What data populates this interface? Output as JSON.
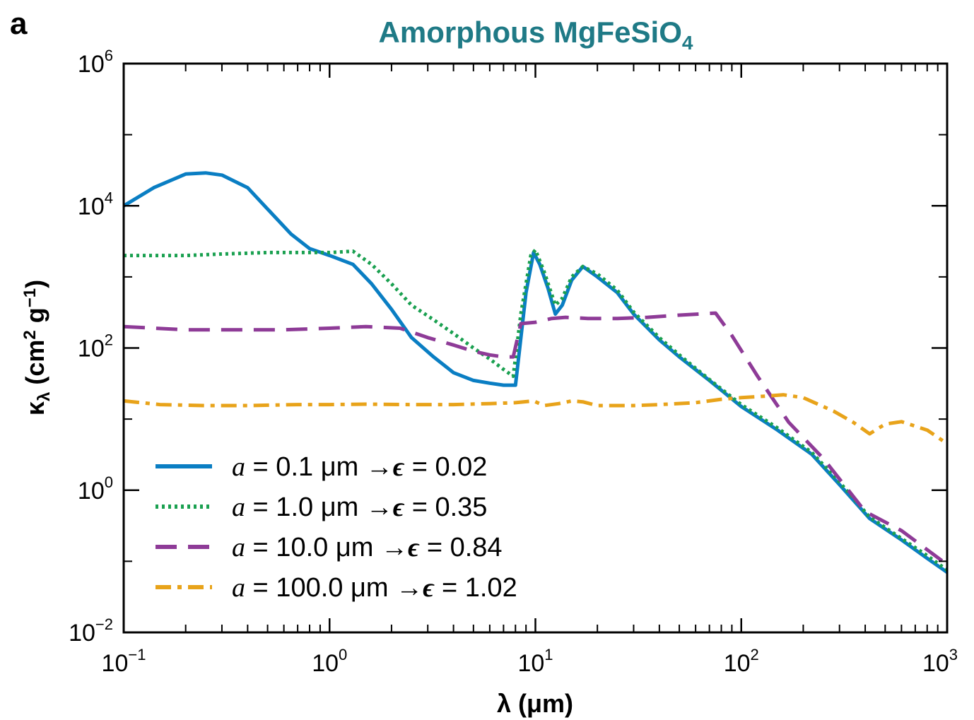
{
  "panel_label": "a",
  "chart_data": {
    "type": "line",
    "title": {
      "main": "Amorphous MgFeSiO",
      "sub": "4"
    },
    "xlabel": "λ (μm)",
    "ylabel": {
      "main": "κ",
      "sub": "λ",
      "unit_open": " (cm",
      "unit_exp1": "2",
      "unit_mid": " g",
      "unit_exp2": "−1",
      "unit_close": ")"
    },
    "x_scale": "log",
    "y_scale": "log",
    "xlim": [
      0.1,
      1000
    ],
    "ylim": [
      0.01,
      1000000
    ],
    "x_ticks": [
      {
        "value": 0.1,
        "base": "10",
        "exp": "−1"
      },
      {
        "value": 1,
        "base": "10",
        "exp": "0"
      },
      {
        "value": 10,
        "base": "10",
        "exp": "1"
      },
      {
        "value": 100,
        "base": "10",
        "exp": "2"
      },
      {
        "value": 1000,
        "base": "10",
        "exp": "3"
      }
    ],
    "y_ticks": [
      {
        "value": 0.01,
        "base": "10",
        "exp": "−2"
      },
      {
        "value": 1,
        "base": "10",
        "exp": "0"
      },
      {
        "value": 100,
        "base": "10",
        "exp": "2"
      },
      {
        "value": 10000,
        "base": "10",
        "exp": "4"
      },
      {
        "value": 1000000,
        "base": "10",
        "exp": "6"
      }
    ],
    "grid": false,
    "legend_position": "bottom-left",
    "series": [
      {
        "name": "a = 0.1 μm → ϵ = 0.02",
        "legend": {
          "a": "a",
          "size": " = 0.1 μm ",
          "arrow": "→",
          "eps": "ϵ",
          "value": " = 0.02"
        },
        "color": "#0a7ec3",
        "dash": "solid",
        "x": [
          0.1,
          0.14,
          0.2,
          0.25,
          0.3,
          0.4,
          0.5,
          0.65,
          0.8,
          1.0,
          1.3,
          1.6,
          2.0,
          2.5,
          3.2,
          4.0,
          5.0,
          6.0,
          7.0,
          8.0,
          9.0,
          9.8,
          10.5,
          11.5,
          12.5,
          13.5,
          15.0,
          17.0,
          20.0,
          25.0,
          30.0,
          40.0,
          50.0,
          70.0,
          100.0,
          150.0,
          220.0,
          300.0,
          420.0,
          600.0,
          800.0,
          1000.0
        ],
        "y": [
          10000,
          18000,
          28000,
          29000,
          27000,
          18000,
          9000,
          4000,
          2500,
          2000,
          1500,
          800,
          350,
          140,
          75,
          45,
          35,
          32,
          30,
          30,
          600,
          2200,
          1500,
          700,
          300,
          400,
          900,
          1400,
          1000,
          600,
          300,
          130,
          75,
          35,
          15,
          7,
          3.2,
          1.2,
          0.4,
          0.2,
          0.11,
          0.07
        ]
      },
      {
        "name": "a = 1.0 μm → ϵ = 0.35",
        "legend": {
          "a": "a",
          "size": " = 1.0 μm ",
          "arrow": "→",
          "eps": "ϵ",
          "value": " = 0.35"
        },
        "color": "#1aa050",
        "dash": "dotted",
        "x": [
          0.1,
          0.2,
          0.3,
          0.5,
          0.8,
          1.0,
          1.3,
          1.6,
          2.0,
          2.5,
          3.2,
          4.0,
          5.0,
          6.0,
          7.0,
          7.8,
          8.5,
          9.5,
          10.0,
          11.0,
          12.5,
          13.5,
          15.0,
          17.0,
          20.0,
          25.0,
          30.0,
          40.0,
          50.0,
          70.0,
          100.0,
          150.0,
          220.0,
          300.0,
          420.0,
          600.0,
          800.0,
          1000.0
        ],
        "y": [
          2000,
          2000,
          2100,
          2200,
          2200,
          2200,
          2300,
          1500,
          800,
          400,
          250,
          160,
          100,
          70,
          50,
          40,
          300,
          2000,
          2400,
          1200,
          400,
          500,
          1000,
          1400,
          1100,
          650,
          320,
          140,
          80,
          36,
          16,
          7.5,
          3.4,
          1.3,
          0.42,
          0.21,
          0.12,
          0.075
        ]
      },
      {
        "name": "a = 10.0 μm → ϵ = 0.84",
        "legend": {
          "a": "a",
          "size": " = 10.0 μm ",
          "arrow": "→",
          "eps": "ϵ",
          "value": " = 0.84"
        },
        "color": "#8e3b97",
        "dash": "dashed",
        "x": [
          0.1,
          0.2,
          0.35,
          0.6,
          1.0,
          1.5,
          2.2,
          3.0,
          4.0,
          5.0,
          6.0,
          7.0,
          7.8,
          8.5,
          10.0,
          12.0,
          14.0,
          18.0,
          25.0,
          35.0,
          50.0,
          75.0,
          90.0,
          120.0,
          170.0,
          250.0,
          400.0,
          600.0,
          1000.0
        ],
        "y": [
          200,
          180,
          180,
          180,
          190,
          200,
          190,
          140,
          110,
          90,
          80,
          75,
          75,
          220,
          230,
          260,
          270,
          260,
          260,
          270,
          290,
          310,
          150,
          40,
          9,
          2.8,
          0.5,
          0.27,
          0.09
        ]
      },
      {
        "name": "a = 100.0 μm → ϵ = 1.02",
        "legend": {
          "a": "a",
          "size": " = 100.0 μm ",
          "arrow": "→",
          "eps": "ϵ",
          "value": " = 1.02"
        },
        "color": "#e8a31a",
        "dash": "dashdot",
        "x": [
          0.1,
          0.15,
          0.25,
          0.4,
          0.7,
          1.0,
          1.5,
          2.5,
          4.0,
          6.0,
          8.0,
          9.8,
          11.0,
          13.0,
          15.0,
          17.0,
          20.0,
          25.0,
          30.0,
          40.0,
          60.0,
          80.0,
          100.0,
          130.0,
          160.0,
          200.0,
          280.0,
          350.0,
          420.0,
          500.0,
          600.0,
          800.0,
          1000.0
        ],
        "y": [
          18,
          16,
          15.5,
          15.5,
          16,
          16,
          16.2,
          16,
          16,
          16.5,
          17,
          18,
          15.5,
          16.5,
          18,
          17.5,
          15.5,
          15.5,
          15.5,
          16,
          17,
          19,
          20,
          21,
          22,
          20,
          13,
          9,
          6.2,
          8.5,
          9.2,
          7,
          4.5
        ]
      }
    ]
  }
}
